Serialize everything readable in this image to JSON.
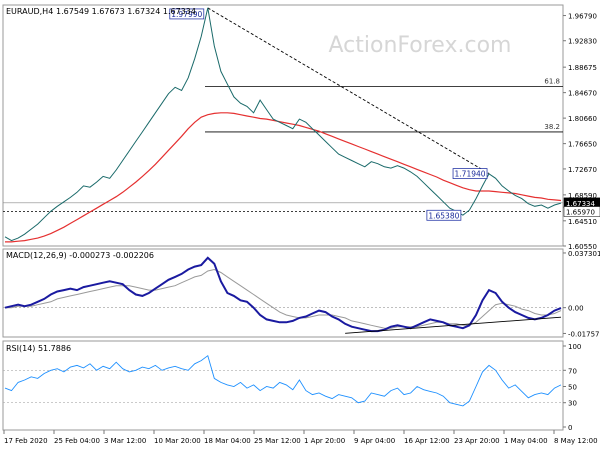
{
  "chart_data": {
    "type": "line",
    "symbol_label": "EURAUD,H4",
    "ohlc_values": "1.67549 1.67673 1.67324 1.67334",
    "watermark": "ActionForex.com",
    "x_ticks": [
      "17 Feb 2020",
      "25 Feb 04:00",
      "3 Mar 12:00",
      "10 Mar 20:00",
      "18 Mar 04:00",
      "25 Mar 12:00",
      "1 Apr 20:00",
      "9 Apr 04:00",
      "16 Apr 12:00",
      "23 Apr 20:00",
      "1 May 04:00",
      "8 May 12:00"
    ],
    "price_panel": {
      "ylim": [
        1.6055,
        1.9845
      ],
      "y_ticks": [
        "1.96790",
        "1.92830",
        "1.88675",
        "1.84670",
        "1.80660",
        "1.76650",
        "1.72670",
        "1.68590",
        "1.64510",
        "1.60550"
      ],
      "y_tick_values": [
        1.9679,
        1.9283,
        1.88675,
        1.8467,
        1.8066,
        1.7665,
        1.7267,
        1.6859,
        1.6451,
        1.6055
      ],
      "current_price_label": "1.67334",
      "current_price": 1.67334,
      "support_label": "1.65970",
      "support_level": 1.6597,
      "close_series": [
        1.62,
        1.614,
        1.618,
        1.624,
        1.632,
        1.64,
        1.65,
        1.66,
        1.668,
        1.675,
        1.682,
        1.69,
        1.7,
        1.698,
        1.706,
        1.715,
        1.712,
        1.725,
        1.74,
        1.755,
        1.77,
        1.785,
        1.8,
        1.815,
        1.83,
        1.845,
        1.855,
        1.85,
        1.87,
        1.9,
        1.935,
        1.98,
        1.92,
        1.88,
        1.86,
        1.84,
        1.83,
        1.825,
        1.815,
        1.835,
        1.82,
        1.805,
        1.8,
        1.795,
        1.79,
        1.805,
        1.8,
        1.79,
        1.78,
        1.77,
        1.76,
        1.75,
        1.745,
        1.74,
        1.735,
        1.73,
        1.738,
        1.735,
        1.73,
        1.728,
        1.732,
        1.728,
        1.722,
        1.715,
        1.705,
        1.695,
        1.685,
        1.675,
        1.665,
        1.66,
        1.654,
        1.662,
        1.68,
        1.7,
        1.719,
        1.712,
        1.7,
        1.692,
        1.685,
        1.68,
        1.672,
        1.668,
        1.67,
        1.665,
        1.67,
        1.673
      ],
      "ma_series": [
        1.612,
        1.612,
        1.613,
        1.614,
        1.616,
        1.618,
        1.621,
        1.625,
        1.63,
        1.635,
        1.641,
        1.647,
        1.653,
        1.659,
        1.665,
        1.671,
        1.677,
        1.683,
        1.69,
        1.698,
        1.706,
        1.715,
        1.724,
        1.734,
        1.745,
        1.756,
        1.767,
        1.778,
        1.79,
        1.8,
        1.808,
        1.812,
        1.814,
        1.815,
        1.815,
        1.814,
        1.812,
        1.81,
        1.808,
        1.806,
        1.805,
        1.803,
        1.801,
        1.799,
        1.797,
        1.795,
        1.792,
        1.789,
        1.786,
        1.782,
        1.778,
        1.774,
        1.77,
        1.766,
        1.762,
        1.758,
        1.754,
        1.75,
        1.746,
        1.742,
        1.738,
        1.734,
        1.73,
        1.726,
        1.722,
        1.718,
        1.714,
        1.709,
        1.705,
        1.701,
        1.697,
        1.694,
        1.692,
        1.692,
        1.692,
        1.691,
        1.69,
        1.689,
        1.688,
        1.686,
        1.684,
        1.682,
        1.681,
        1.679,
        1.678,
        1.677
      ],
      "annotations": [
        {
          "text": "1.97990",
          "x_index": 31,
          "price": 1.9799
        },
        {
          "text": "1.71940",
          "x_index": 74,
          "price": 1.7194
        },
        {
          "text": "1.65380",
          "x_index": 70,
          "price": 1.6538
        }
      ],
      "fib_levels": [
        {
          "label": "61.8",
          "price": 1.8563
        },
        {
          "label": "38.2",
          "price": 1.7849
        }
      ],
      "trendline": {
        "from_index": 31,
        "from_price": 1.9799,
        "to_index": 74,
        "to_price": 1.7194
      }
    },
    "macd_panel": {
      "label": "MACD(12,26,9) -0.000273 -0.002206",
      "ylim": [
        -0.02,
        0.04
      ],
      "y_ticks": [
        "0.037301",
        "0.00",
        "-0.017577"
      ],
      "y_tick_values": [
        0.037301,
        0.0,
        -0.017577
      ],
      "macd_series": [
        0.0,
        0.001,
        0.002,
        0.001,
        0.002,
        0.004,
        0.006,
        0.009,
        0.011,
        0.012,
        0.013,
        0.012,
        0.014,
        0.015,
        0.016,
        0.017,
        0.018,
        0.017,
        0.016,
        0.012,
        0.009,
        0.008,
        0.01,
        0.013,
        0.016,
        0.019,
        0.021,
        0.023,
        0.026,
        0.028,
        0.029,
        0.034,
        0.03,
        0.018,
        0.01,
        0.008,
        0.005,
        0.004,
        0.0,
        -0.005,
        -0.008,
        -0.009,
        -0.01,
        -0.01,
        -0.009,
        -0.007,
        -0.006,
        -0.004,
        -0.002,
        -0.003,
        -0.006,
        -0.008,
        -0.011,
        -0.013,
        -0.014,
        -0.015,
        -0.016,
        -0.016,
        -0.015,
        -0.013,
        -0.012,
        -0.013,
        -0.014,
        -0.012,
        -0.01,
        -0.008,
        -0.009,
        -0.01,
        -0.012,
        -0.013,
        -0.014,
        -0.012,
        -0.005,
        0.005,
        0.012,
        0.01,
        0.004,
        0.0,
        -0.003,
        -0.005,
        -0.007,
        -0.008,
        -0.007,
        -0.005,
        -0.002,
        -0.0003
      ],
      "signal_series": [
        0.0,
        0.0,
        0.001,
        0.001,
        0.001,
        0.002,
        0.003,
        0.004,
        0.006,
        0.007,
        0.008,
        0.009,
        0.01,
        0.011,
        0.012,
        0.013,
        0.014,
        0.015,
        0.015,
        0.015,
        0.014,
        0.013,
        0.012,
        0.012,
        0.013,
        0.014,
        0.015,
        0.017,
        0.019,
        0.021,
        0.022,
        0.025,
        0.026,
        0.024,
        0.021,
        0.018,
        0.015,
        0.012,
        0.009,
        0.006,
        0.003,
        0.0,
        -0.003,
        -0.005,
        -0.006,
        -0.007,
        -0.007,
        -0.006,
        -0.005,
        -0.005,
        -0.005,
        -0.006,
        -0.007,
        -0.009,
        -0.01,
        -0.011,
        -0.012,
        -0.013,
        -0.014,
        -0.014,
        -0.013,
        -0.013,
        -0.013,
        -0.013,
        -0.012,
        -0.011,
        -0.01,
        -0.01,
        -0.011,
        -0.011,
        -0.012,
        -0.012,
        -0.01,
        -0.006,
        -0.002,
        0.002,
        0.003,
        0.002,
        0.001,
        -0.001,
        -0.002,
        -0.004,
        -0.005,
        -0.005,
        -0.004,
        -0.002
      ],
      "trendline": {
        "from_index": 52,
        "from_value": -0.0175,
        "to_index": 85,
        "to_value": -0.0065
      }
    },
    "rsi_panel": {
      "label": "RSI(14) 51.7886",
      "ylim": [
        0,
        100
      ],
      "y_ticks": [
        "100",
        "70",
        "50",
        "30",
        "0"
      ],
      "y_tick_values": [
        100,
        70,
        50,
        30,
        0
      ],
      "rsi_series": [
        48,
        45,
        55,
        58,
        62,
        60,
        66,
        70,
        72,
        68,
        74,
        76,
        73,
        78,
        70,
        75,
        72,
        80,
        72,
        68,
        70,
        74,
        72,
        76,
        70,
        73,
        75,
        72,
        70,
        78,
        82,
        88,
        60,
        55,
        52,
        50,
        55,
        48,
        52,
        45,
        50,
        48,
        55,
        52,
        46,
        58,
        45,
        40,
        42,
        38,
        35,
        40,
        38,
        36,
        30,
        32,
        42,
        40,
        38,
        45,
        48,
        40,
        42,
        50,
        46,
        44,
        42,
        38,
        30,
        28,
        26,
        32,
        50,
        68,
        76,
        70,
        58,
        48,
        52,
        44,
        36,
        40,
        42,
        40,
        48,
        52
      ]
    }
  }
}
